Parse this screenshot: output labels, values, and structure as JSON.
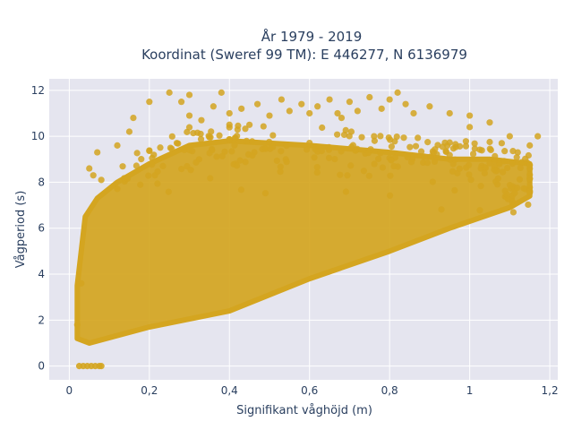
{
  "chart_data": {
    "type": "scatter",
    "title_line1": "År 1979 - 2019",
    "title_line2": "Koordinat (Sweref 99 TM): E 446277, N 6136979",
    "xlabel": "Signifikant våghöjd (m)",
    "ylabel": "Vågperiod (s)",
    "xlim": [
      -0.05,
      1.22
    ],
    "ylim": [
      -0.6,
      12.5
    ],
    "x_ticks": [
      0,
      0.2,
      0.4,
      0.6,
      0.8,
      1,
      1.2
    ],
    "x_tick_labels": [
      "0",
      "0,2",
      "0,4",
      "0,6",
      "0,8",
      "1",
      "1,2"
    ],
    "y_ticks": [
      0,
      2,
      4,
      6,
      8,
      10,
      12
    ],
    "y_tick_labels": [
      "0",
      "2",
      "4",
      "6",
      "8",
      "10",
      "12"
    ],
    "grid": true,
    "marker_color": "#D4A520",
    "background_color": "#E5E5EF",
    "dense_region_polygon": [
      [
        0.02,
        1.2
      ],
      [
        0.05,
        1.0
      ],
      [
        0.2,
        1.7
      ],
      [
        0.4,
        2.4
      ],
      [
        0.6,
        3.8
      ],
      [
        0.8,
        5.0
      ],
      [
        0.95,
        6.0
      ],
      [
        1.1,
        6.9
      ],
      [
        1.15,
        7.4
      ],
      [
        1.15,
        8.8
      ],
      [
        1.05,
        9.0
      ],
      [
        0.95,
        9.0
      ],
      [
        0.8,
        9.3
      ],
      [
        0.6,
        9.6
      ],
      [
        0.4,
        9.8
      ],
      [
        0.3,
        9.6
      ],
      [
        0.2,
        8.8
      ],
      [
        0.12,
        8.0
      ],
      [
        0.07,
        7.3
      ],
      [
        0.04,
        6.5
      ],
      [
        0.02,
        3.5
      ]
    ],
    "zero_period_points": [
      {
        "x": 0.025,
        "y": 0
      },
      {
        "x": 0.035,
        "y": 0
      },
      {
        "x": 0.045,
        "y": 0
      },
      {
        "x": 0.055,
        "y": 0
      },
      {
        "x": 0.065,
        "y": 0
      },
      {
        "x": 0.075,
        "y": 0
      },
      {
        "x": 0.08,
        "y": 0
      }
    ],
    "outlier_points": [
      {
        "x": 0.2,
        "y": 11.5
      },
      {
        "x": 0.25,
        "y": 11.9
      },
      {
        "x": 0.28,
        "y": 11.5
      },
      {
        "x": 0.3,
        "y": 11.8
      },
      {
        "x": 0.3,
        "y": 10.9
      },
      {
        "x": 0.36,
        "y": 11.3
      },
      {
        "x": 0.38,
        "y": 11.9
      },
      {
        "x": 0.4,
        "y": 11.0
      },
      {
        "x": 0.43,
        "y": 11.2
      },
      {
        "x": 0.47,
        "y": 11.4
      },
      {
        "x": 0.5,
        "y": 10.9
      },
      {
        "x": 0.53,
        "y": 11.6
      },
      {
        "x": 0.55,
        "y": 11.1
      },
      {
        "x": 0.58,
        "y": 11.4
      },
      {
        "x": 0.6,
        "y": 11.0
      },
      {
        "x": 0.62,
        "y": 11.3
      },
      {
        "x": 0.65,
        "y": 11.6
      },
      {
        "x": 0.67,
        "y": 11.0
      },
      {
        "x": 0.7,
        "y": 11.5
      },
      {
        "x": 0.72,
        "y": 11.1
      },
      {
        "x": 0.75,
        "y": 11.7
      },
      {
        "x": 0.78,
        "y": 11.2
      },
      {
        "x": 0.8,
        "y": 11.6
      },
      {
        "x": 0.82,
        "y": 11.9
      },
      {
        "x": 0.84,
        "y": 11.4
      },
      {
        "x": 0.86,
        "y": 11.0
      },
      {
        "x": 0.9,
        "y": 11.3
      },
      {
        "x": 0.95,
        "y": 11.0
      },
      {
        "x": 1.0,
        "y": 10.9
      },
      {
        "x": 1.05,
        "y": 10.6
      },
      {
        "x": 1.0,
        "y": 10.4
      },
      {
        "x": 1.1,
        "y": 10.0
      },
      {
        "x": 1.17,
        "y": 10.0
      },
      {
        "x": 1.15,
        "y": 9.6
      },
      {
        "x": 1.12,
        "y": 9.3
      },
      {
        "x": 1.08,
        "y": 9.7
      },
      {
        "x": 0.05,
        "y": 8.6
      },
      {
        "x": 0.06,
        "y": 8.3
      },
      {
        "x": 0.08,
        "y": 8.1
      },
      {
        "x": 0.03,
        "y": 3.6
      },
      {
        "x": 0.02,
        "y": 1.8
      },
      {
        "x": 0.07,
        "y": 9.3
      },
      {
        "x": 0.12,
        "y": 9.6
      },
      {
        "x": 0.15,
        "y": 10.2
      },
      {
        "x": 0.16,
        "y": 10.8
      },
      {
        "x": 0.33,
        "y": 10.7
      },
      {
        "x": 0.45,
        "y": 10.5
      },
      {
        "x": 0.68,
        "y": 10.8
      }
    ]
  }
}
